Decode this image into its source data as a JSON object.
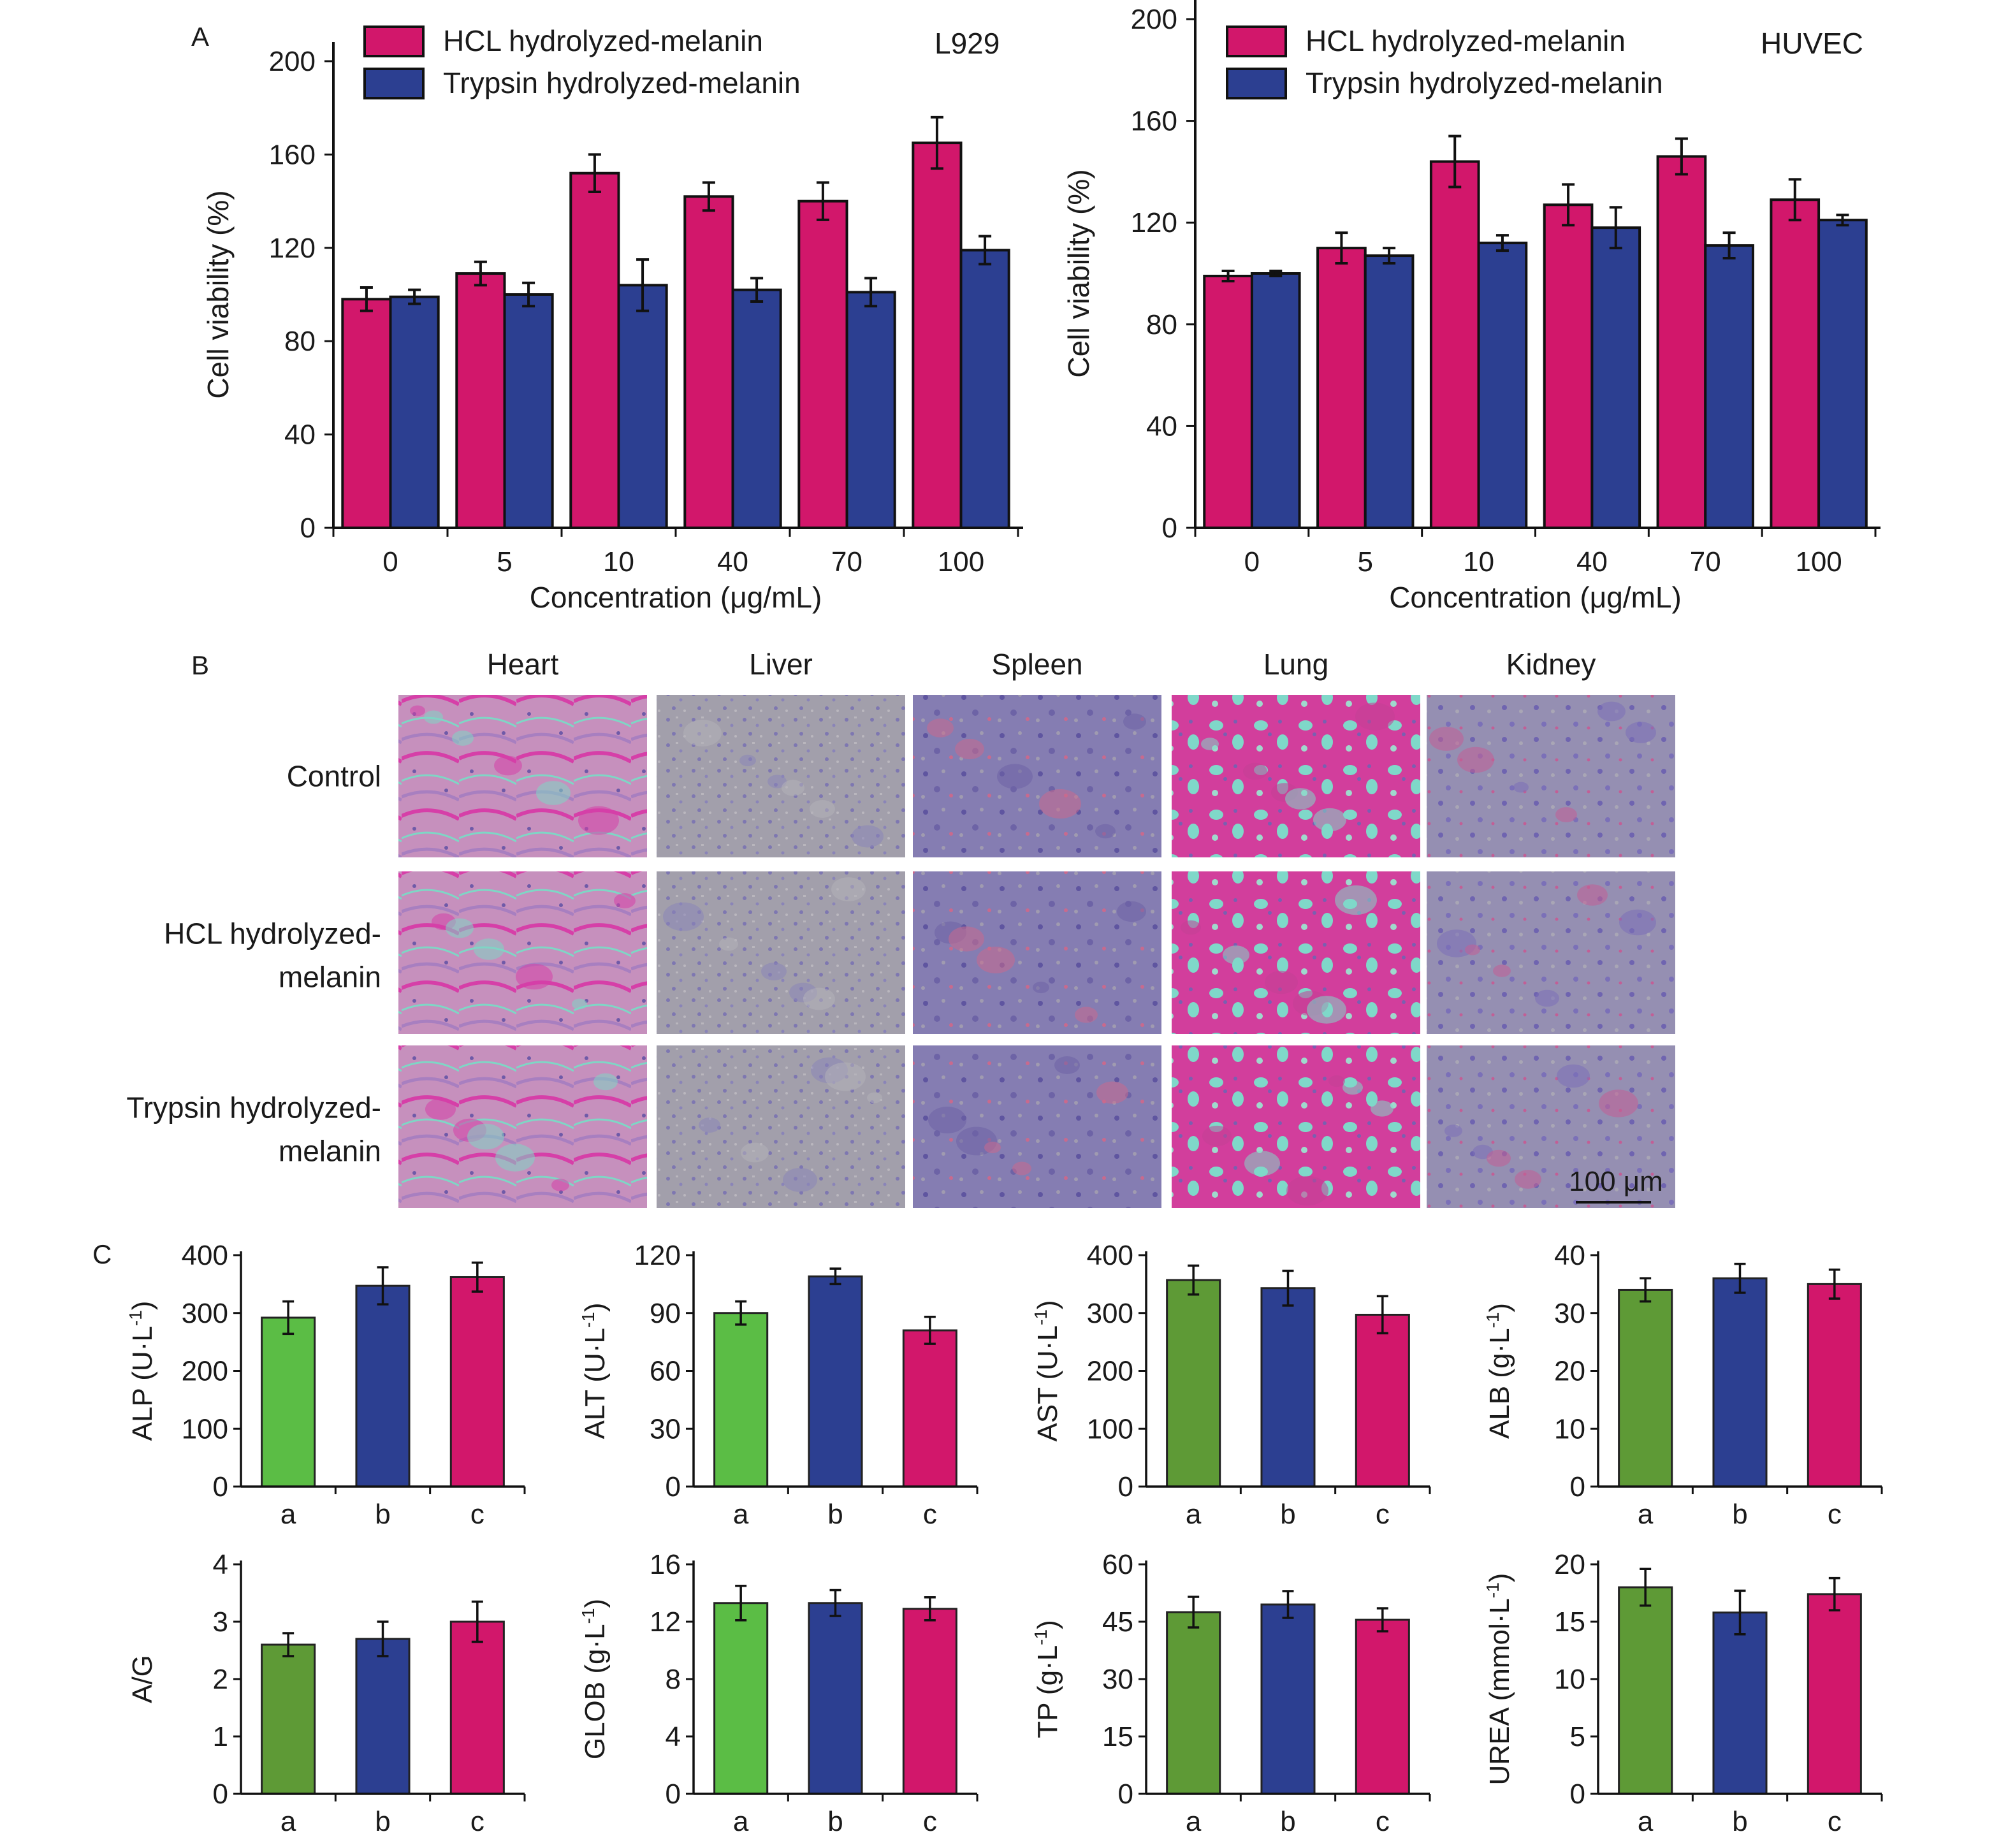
{
  "colors": {
    "hcl": "#d2176b",
    "trypsin": "#2c3f91",
    "group_a_green": "#5bbd45",
    "group_a_olive": "#5e9a36",
    "group_b": "#2c3f91",
    "group_c": "#d2176b",
    "axis": "#1a1a1a"
  },
  "panels": {
    "a": "A",
    "b": "B",
    "c": "C"
  },
  "legend": {
    "hcl": "HCL hydrolyzed-melanin",
    "trypsin": "Trypsin hydrolyzed-melanin"
  },
  "chart_data": [
    {
      "type": "bar",
      "panel": "A",
      "cell_line": "L929",
      "categories": [
        "0",
        "5",
        "10",
        "40",
        "70",
        "100"
      ],
      "xlabel": "Concentration (μg/mL)",
      "ylabel": "Cell viability (%)",
      "ylim": [
        0,
        200
      ],
      "yticks": [
        "0",
        "40",
        "80",
        "120",
        "160",
        "200"
      ],
      "legend_position": "top",
      "grid": false,
      "series": [
        {
          "name": "HCL hydrolyzed-melanin",
          "values": [
            98,
            109,
            152,
            142,
            140,
            165
          ],
          "errors": [
            5,
            5,
            8,
            6,
            8,
            11
          ]
        },
        {
          "name": "Trypsin hydrolyzed-melanin",
          "values": [
            99,
            100,
            104,
            102,
            101,
            119
          ],
          "errors": [
            3,
            5,
            11,
            5,
            6,
            6
          ]
        }
      ]
    },
    {
      "type": "bar",
      "panel": "A",
      "cell_line": "HUVEC",
      "categories": [
        "0",
        "5",
        "10",
        "40",
        "70",
        "100"
      ],
      "xlabel": "Concentration (μg/mL)",
      "ylabel": "Cell viability (%)",
      "ylim": [
        0,
        200
      ],
      "yticks": [
        "0",
        "40",
        "80",
        "120",
        "160",
        "200"
      ],
      "legend_position": "top",
      "grid": false,
      "series": [
        {
          "name": "HCL hydrolyzed-melanin",
          "values": [
            99,
            110,
            144,
            127,
            146,
            129
          ],
          "errors": [
            2,
            6,
            10,
            8,
            7,
            8
          ]
        },
        {
          "name": "Trypsin hydrolyzed-melanin",
          "values": [
            100,
            107,
            112,
            118,
            111,
            121
          ],
          "errors": [
            1,
            3,
            3,
            8,
            5,
            2
          ]
        }
      ]
    },
    {
      "type": "bar",
      "panel": "C",
      "ylabel": "ALP (U·L",
      "ylabel_sup": "-1",
      "ylabel_end": ")",
      "ylim": [
        0,
        400
      ],
      "yticks": [
        "0",
        "100",
        "200",
        "300",
        "400"
      ],
      "categories": [
        "a",
        "b",
        "c"
      ],
      "values": [
        292,
        347,
        362
      ],
      "errors": [
        28,
        32,
        25
      ],
      "a_color": "#5bbd45"
    },
    {
      "type": "bar",
      "panel": "C",
      "ylabel": "ALT (U·L",
      "ylabel_sup": "-1",
      "ylabel_end": ")",
      "ylim": [
        0,
        120
      ],
      "yticks": [
        "0",
        "30",
        "60",
        "90",
        "120"
      ],
      "categories": [
        "a",
        "b",
        "c"
      ],
      "values": [
        90,
        109,
        81
      ],
      "errors": [
        6,
        4,
        7
      ],
      "a_color": "#5bbd45"
    },
    {
      "type": "bar",
      "panel": "C",
      "ylabel": "AST (U·L",
      "ylabel_sup": "-1",
      "ylabel_end": ")",
      "ylim": [
        0,
        400
      ],
      "yticks": [
        "0",
        "100",
        "200",
        "300",
        "400"
      ],
      "categories": [
        "a",
        "b",
        "c"
      ],
      "values": [
        357,
        343,
        297
      ],
      "errors": [
        25,
        30,
        32
      ],
      "a_color": "#5e9a36"
    },
    {
      "type": "bar",
      "panel": "C",
      "ylabel": "ALB (g·L",
      "ylabel_sup": "-1",
      "ylabel_end": ")",
      "ylim": [
        0,
        40
      ],
      "yticks": [
        "0",
        "10",
        "20",
        "30",
        "40"
      ],
      "categories": [
        "a",
        "b",
        "c"
      ],
      "values": [
        34,
        36,
        35
      ],
      "errors": [
        2,
        2.5,
        2.5
      ],
      "a_color": "#5e9a36"
    },
    {
      "type": "bar",
      "panel": "C",
      "ylabel": "A/G",
      "ylabel_sup": "",
      "ylabel_end": "",
      "ylim": [
        0,
        4
      ],
      "yticks": [
        "0",
        "1",
        "2",
        "3",
        "4"
      ],
      "categories": [
        "a",
        "b",
        "c"
      ],
      "values": [
        2.6,
        2.7,
        3.0
      ],
      "errors": [
        0.2,
        0.3,
        0.35
      ],
      "a_color": "#5e9a36"
    },
    {
      "type": "bar",
      "panel": "C",
      "ylabel": "GLOB (g·L",
      "ylabel_sup": "-1",
      "ylabel_end": ")",
      "ylim": [
        0,
        16
      ],
      "yticks": [
        "0",
        "4",
        "8",
        "12",
        "16"
      ],
      "categories": [
        "a",
        "b",
        "c"
      ],
      "values": [
        13.3,
        13.3,
        12.9
      ],
      "errors": [
        1.2,
        0.9,
        0.8
      ],
      "a_color": "#5bbd45"
    },
    {
      "type": "bar",
      "panel": "C",
      "ylabel": "TP (g·L",
      "ylabel_sup": "-1",
      "ylabel_end": ")",
      "ylim": [
        0,
        60
      ],
      "yticks": [
        "0",
        "15",
        "30",
        "45",
        "60"
      ],
      "categories": [
        "a",
        "b",
        "c"
      ],
      "values": [
        47.5,
        49.5,
        45.5
      ],
      "errors": [
        4,
        3.5,
        3
      ],
      "a_color": "#5e9a36"
    },
    {
      "type": "bar",
      "panel": "C",
      "ylabel": "UREA (mmol·L",
      "ylabel_sup": "-1",
      "ylabel_end": ")",
      "ylim": [
        0,
        20
      ],
      "yticks": [
        "0",
        "5",
        "10",
        "15",
        "20"
      ],
      "categories": [
        "a",
        "b",
        "c"
      ],
      "values": [
        18,
        15.8,
        17.4
      ],
      "errors": [
        1.6,
        1.9,
        1.4
      ],
      "a_color": "#5e9a36"
    }
  ],
  "histology": {
    "columns": [
      "Heart",
      "Liver",
      "Spleen",
      "Lung",
      "Kidney"
    ],
    "rows": [
      {
        "line1": "Control",
        "line2": ""
      },
      {
        "line1": "HCL hydrolyzed-",
        "line2": "melanin"
      },
      {
        "line1": "Trypsin hydrolyzed-",
        "line2": "melanin"
      }
    ],
    "scale_bar": "100 μm",
    "tissue_styles": {
      "Heart": {
        "base": "#c693bd",
        "accent": "#d63fa8",
        "detail": "#7fd6c5"
      },
      "Liver": {
        "base": "#9f9aac",
        "accent": "#8b85b8",
        "detail": "#b3b0b8"
      },
      "Spleen": {
        "base": "#8880b3",
        "accent": "#6d63a6",
        "detail": "#c86a8e"
      },
      "Lung": {
        "base": "#d7409e",
        "accent": "#c23f96",
        "detail": "#7fd8c9"
      },
      "Kidney": {
        "base": "#9690b4",
        "accent": "#7b70b8",
        "detail": "#c25f96"
      }
    }
  }
}
